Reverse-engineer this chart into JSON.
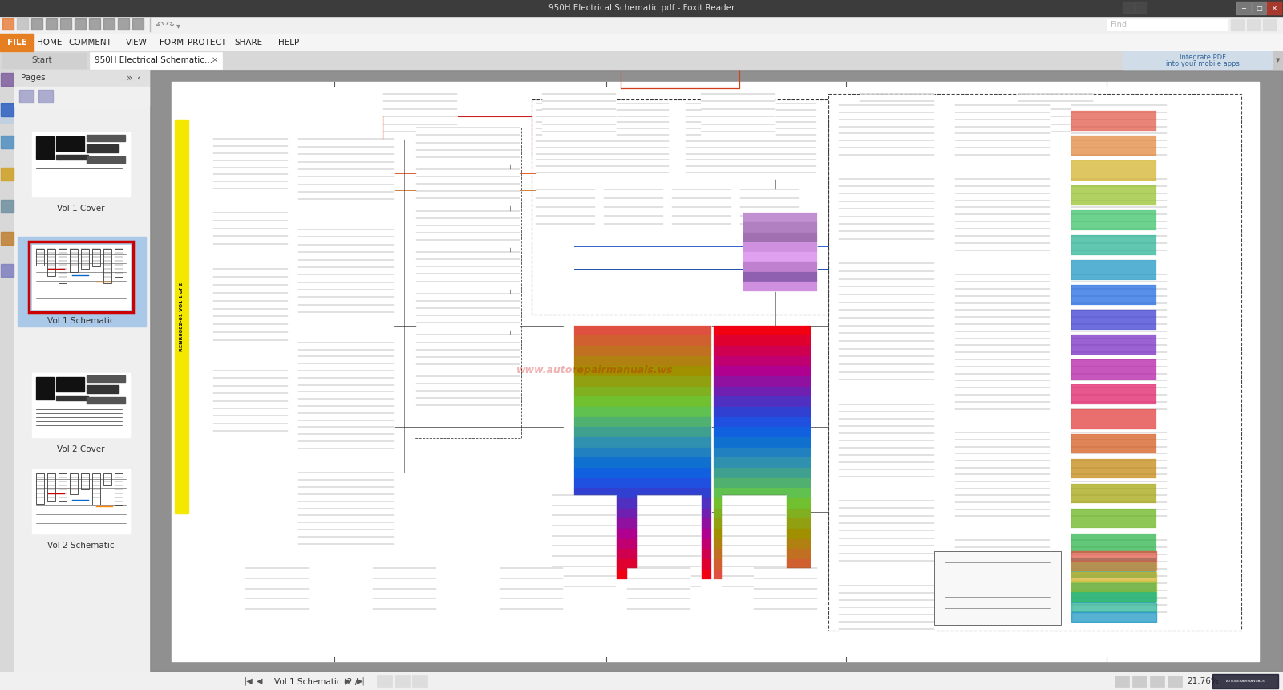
{
  "title_bar": "950H Electrical Schematic.pdf - Foxit Reader",
  "menu_items": [
    "FILE",
    "HOME",
    "COMMENT",
    "VIEW",
    "FORM",
    "PROTECT",
    "SHARE",
    "HELP"
  ],
  "tab1": "Start",
  "tab2": "950H Electrical Schematic...",
  "pages_panel_label": "Pages",
  "thumbnail_labels": [
    "Vol 1 Cover",
    "Vol 1 Schematic",
    "Vol 2 Cover",
    "Vol 2 Schematic"
  ],
  "status_bar_text": "Vol 1 Schematic (2 /",
  "zoom_text": "21.76%",
  "bg_color": "#aaaaaa",
  "file_btn_color": "#e67e22",
  "yellow_bar_color": "#f5e800",
  "watermark_color": "#cc0000",
  "right_panel_text1": "Integrate PDF",
  "right_panel_text2": "into your mobile apps",
  "title_bar_bg": "#3c3c3c",
  "toolbar_bg": "#f0f0f0",
  "menu_bg": "#f5f5f5",
  "tab_bar_bg": "#d8d8d8",
  "panel_bg": "#efefef",
  "viewer_bg": "#8c8c8c",
  "page_bg": "#ffffff",
  "status_bg": "#f0f0f0",
  "sidebar_bg": "#e8e8e8",
  "pages_header_bg": "#e0e0e0",
  "selected_thumb_bg": "#aac8e8",
  "selected_thumb_border": "#cc0000"
}
